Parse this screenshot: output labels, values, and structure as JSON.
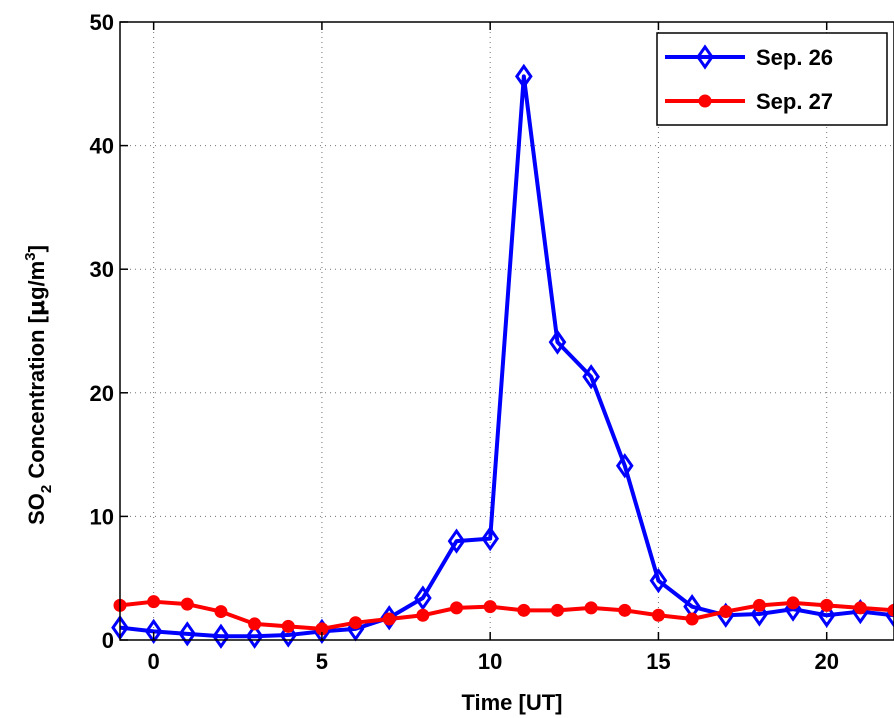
{
  "chart_data": {
    "type": "line",
    "title": "",
    "xlabel": "Time [UT]",
    "ylabel": {
      "prefix": "SO",
      "sub": "2",
      "middle": " Concentration [",
      "mu": "μ",
      "unit": "g/m",
      "sup": "3",
      "suffix": "]"
    },
    "xlim": [
      -1,
      22
    ],
    "ylim": [
      0,
      50
    ],
    "xticks": [
      0,
      5,
      10,
      15,
      20
    ],
    "yticks": [
      0,
      10,
      20,
      30,
      40,
      50
    ],
    "grid": true,
    "legend_position": "top-right",
    "series": [
      {
        "name": "Sep. 26",
        "color": "#0000ff",
        "marker": "diamond",
        "x": [
          -1,
          0,
          1,
          2,
          3,
          4,
          5,
          6,
          7,
          8,
          9,
          10,
          11,
          12,
          13,
          14,
          15,
          16,
          17,
          18,
          19,
          20,
          21,
          22
        ],
        "y": [
          1.0,
          0.7,
          0.5,
          0.3,
          0.3,
          0.4,
          0.7,
          0.9,
          1.8,
          3.4,
          8.0,
          8.2,
          45.6,
          24.1,
          21.3,
          14.1,
          4.8,
          2.7,
          2.0,
          2.1,
          2.5,
          2.0,
          2.3,
          2.0
        ]
      },
      {
        "name": "Sep. 27",
        "color": "#ff0000",
        "marker": "circle",
        "x": [
          -1,
          0,
          1,
          2,
          3,
          4,
          5,
          6,
          7,
          8,
          9,
          10,
          11,
          12,
          13,
          14,
          15,
          16,
          17,
          18,
          19,
          20,
          21,
          22
        ],
        "y": [
          2.8,
          3.1,
          2.9,
          2.3,
          1.3,
          1.1,
          0.9,
          1.4,
          1.7,
          2.0,
          2.6,
          2.7,
          2.4,
          2.4,
          2.6,
          2.4,
          2.0,
          1.7,
          2.3,
          2.8,
          3.0,
          2.8,
          2.6,
          2.4
        ]
      }
    ]
  }
}
